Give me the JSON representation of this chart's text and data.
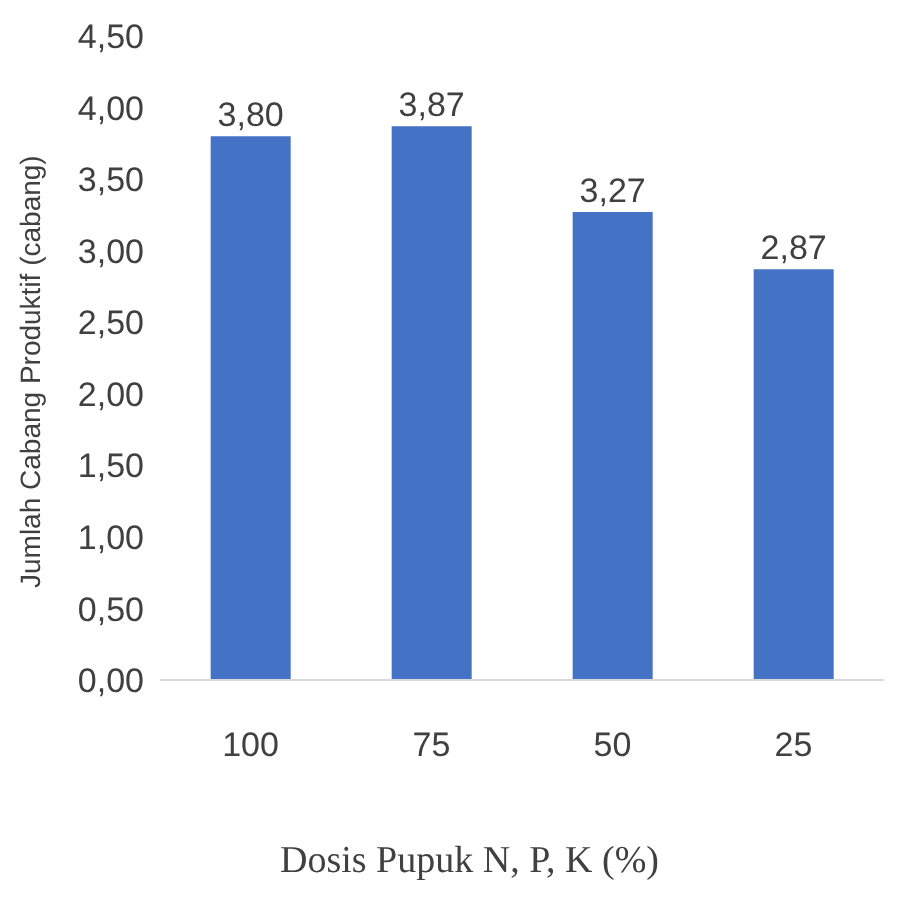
{
  "chart_data": {
    "type": "bar",
    "xlabel": "Dosis Pupuk N, P, K (%)",
    "ylabel": "Jumlah Cabang Produktif (cabang)",
    "categories": [
      "100",
      "75",
      "50",
      "25"
    ],
    "values": [
      3.8,
      3.87,
      3.27,
      2.87
    ],
    "value_labels": [
      "3,80",
      "3,87",
      "3,27",
      "2,87"
    ],
    "color": "#4472c4",
    "ylim": [
      0,
      4.5
    ],
    "yticks": [
      {
        "value": 0,
        "label": "0,00"
      },
      {
        "value": 0.5,
        "label": "0,50"
      },
      {
        "value": 1,
        "label": "1,00"
      },
      {
        "value": 1.5,
        "label": "1,50"
      },
      {
        "value": 2,
        "label": "2,00"
      },
      {
        "value": 2.5,
        "label": "2,50"
      },
      {
        "value": 3,
        "label": "3,00"
      },
      {
        "value": 3.5,
        "label": "3,50"
      },
      {
        "value": 4,
        "label": "4,00"
      },
      {
        "value": 4.5,
        "label": "4,50"
      }
    ],
    "grid": false,
    "legend": false
  }
}
